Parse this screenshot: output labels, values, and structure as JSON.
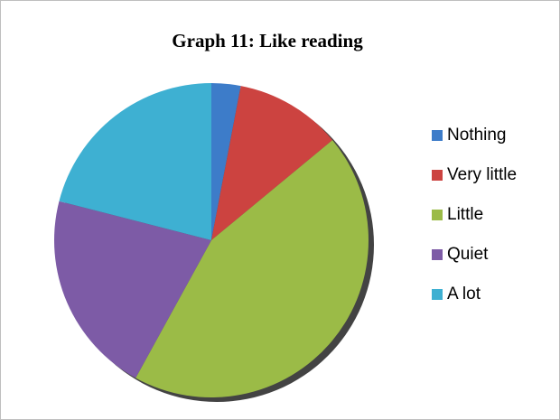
{
  "chart_data": {
    "type": "pie",
    "title": "Graph 11: Like reading",
    "categories": [
      "Nothing",
      "Very little",
      "Little",
      "Quiet",
      "A lot"
    ],
    "values": [
      3,
      11,
      44,
      21,
      21
    ],
    "colors": [
      "#3d7cc9",
      "#cc4340",
      "#9bbb47",
      "#7d5ba6",
      "#3eb0d2"
    ],
    "legend": "right"
  }
}
